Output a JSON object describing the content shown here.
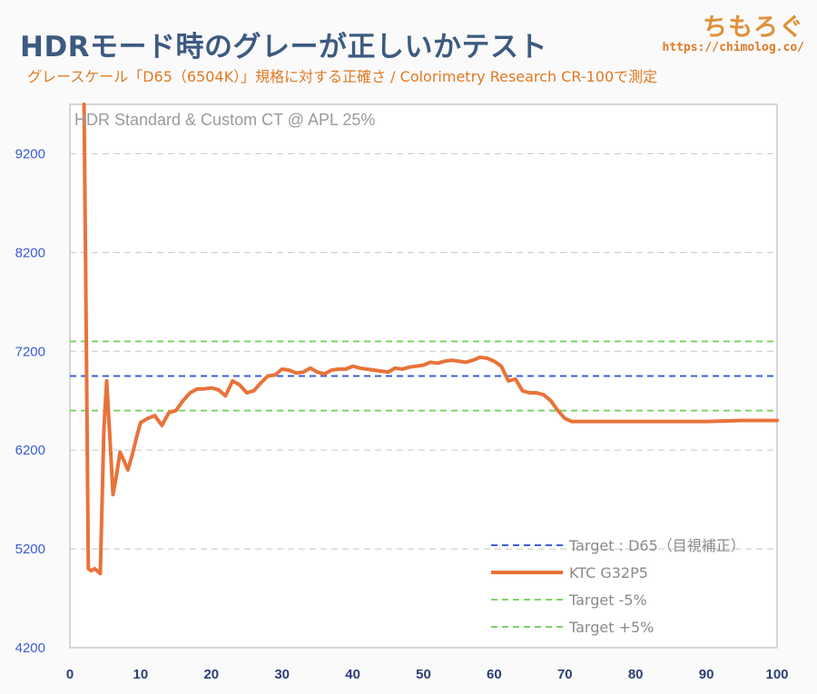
{
  "header": {
    "title": "HDRモード時のグレーが正しいかテスト",
    "subtitle": "グレースケール「D65（6504K）」規格に対する正確さ / Colorimetry Research CR-100で測定"
  },
  "brand": {
    "name": "ちもろぐ",
    "url": "https://chimolog.co/"
  },
  "colors": {
    "target": "#3d5fd6",
    "series": "#e8733a",
    "tolerance": "#7ed26a",
    "title": "#3d5a80",
    "tick_y": "#3b5bd6",
    "tick_x": "#2d3f73"
  },
  "chart_data": {
    "type": "line",
    "title": "HDR Standard & Custom CT @ APL 25%",
    "xlabel": "",
    "ylabel": "",
    "xlim": [
      0,
      100
    ],
    "ylim": [
      4200,
      9700
    ],
    "x_ticks": [
      0,
      10,
      20,
      30,
      40,
      50,
      60,
      70,
      80,
      90,
      100
    ],
    "y_ticks": [
      4200,
      5200,
      6200,
      7200,
      8200,
      9200
    ],
    "grid": true,
    "legend_position": "bottom-right",
    "reference_lines": [
      {
        "name": "Target : D65（目視補正）",
        "value": 6950,
        "style": "dashed",
        "color": "#3d5fd6"
      },
      {
        "name": "Target -5%",
        "value": 6600,
        "style": "dashed",
        "color": "#7ed26a"
      },
      {
        "name": "Target +5%",
        "value": 7300,
        "style": "dashed",
        "color": "#7ed26a"
      }
    ],
    "series": [
      {
        "name": "KTC G32P5",
        "color": "#e8733a",
        "points": [
          [
            2,
            9700
          ],
          [
            2.3,
            7500
          ],
          [
            2.6,
            5000
          ],
          [
            3,
            4980
          ],
          [
            3.5,
            5000
          ],
          [
            4.3,
            4950
          ],
          [
            4.8,
            6400
          ],
          [
            5.2,
            6900
          ],
          [
            5.6,
            6400
          ],
          [
            6.1,
            5750
          ],
          [
            6.6,
            5950
          ],
          [
            7.1,
            6180
          ],
          [
            7.6,
            6100
          ],
          [
            8.2,
            6000
          ],
          [
            8.8,
            6150
          ],
          [
            9.5,
            6350
          ],
          [
            10,
            6480
          ],
          [
            11,
            6520
          ],
          [
            12,
            6550
          ],
          [
            13,
            6450
          ],
          [
            14,
            6580
          ],
          [
            15,
            6600
          ],
          [
            16,
            6700
          ],
          [
            17,
            6780
          ],
          [
            18,
            6820
          ],
          [
            19,
            6820
          ],
          [
            20,
            6830
          ],
          [
            21,
            6810
          ],
          [
            22,
            6750
          ],
          [
            23,
            6900
          ],
          [
            24,
            6860
          ],
          [
            25,
            6780
          ],
          [
            26,
            6800
          ],
          [
            27,
            6880
          ],
          [
            28,
            6950
          ],
          [
            29,
            6960
          ],
          [
            30,
            7020
          ],
          [
            31,
            7010
          ],
          [
            32,
            6980
          ],
          [
            33,
            6990
          ],
          [
            34,
            7030
          ],
          [
            35,
            6990
          ],
          [
            36,
            6970
          ],
          [
            37,
            7010
          ],
          [
            38,
            7020
          ],
          [
            39,
            7020
          ],
          [
            40,
            7050
          ],
          [
            41,
            7030
          ],
          [
            42,
            7020
          ],
          [
            43,
            7010
          ],
          [
            44,
            7000
          ],
          [
            45,
            6990
          ],
          [
            46,
            7030
          ],
          [
            47,
            7020
          ],
          [
            48,
            7040
          ],
          [
            49,
            7050
          ],
          [
            50,
            7060
          ],
          [
            51,
            7090
          ],
          [
            52,
            7080
          ],
          [
            53,
            7100
          ],
          [
            54,
            7110
          ],
          [
            55,
            7100
          ],
          [
            56,
            7090
          ],
          [
            57,
            7110
          ],
          [
            58,
            7140
          ],
          [
            59,
            7130
          ],
          [
            60,
            7100
          ],
          [
            61,
            7050
          ],
          [
            62,
            6900
          ],
          [
            63,
            6920
          ],
          [
            64,
            6800
          ],
          [
            65,
            6780
          ],
          [
            66,
            6780
          ],
          [
            67,
            6760
          ],
          [
            68,
            6700
          ],
          [
            69,
            6600
          ],
          [
            70,
            6520
          ],
          [
            71,
            6490
          ],
          [
            72,
            6490
          ],
          [
            75,
            6490
          ],
          [
            80,
            6490
          ],
          [
            85,
            6490
          ],
          [
            90,
            6490
          ],
          [
            95,
            6500
          ],
          [
            100,
            6500
          ]
        ]
      }
    ]
  }
}
